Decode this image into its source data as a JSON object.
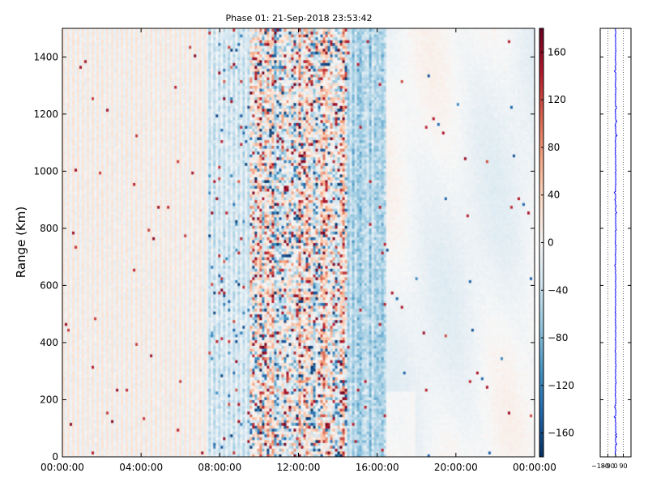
{
  "chart_data": {
    "type": "heatmap",
    "title": "Phase 01: 21-Sep-2018 23:53:42",
    "xlabel": "",
    "ylabel": "Range (Km)",
    "x_ticks": [
      "00:00:00",
      "04:00:00",
      "08:00:00",
      "12:00:00",
      "16:00:00",
      "20:00:00",
      "00:00:00"
    ],
    "y_ticks": [
      0,
      200,
      400,
      600,
      800,
      1000,
      1200,
      1400
    ],
    "ylim": [
      0,
      1500
    ],
    "xlim_hours": [
      0,
      24
    ],
    "colorbar": {
      "cmap": "RdBu_r",
      "range": [
        -180,
        180
      ],
      "ticks": [
        160,
        120,
        80,
        40,
        0,
        -40,
        -80,
        -120,
        -160
      ],
      "colors": [
        "#053061",
        "#2166ac",
        "#4393c3",
        "#92c5de",
        "#d1e5f0",
        "#f7f7f7",
        "#fddbc7",
        "#f4a582",
        "#d6604d",
        "#b2182b",
        "#67001f"
      ]
    },
    "regions": [
      {
        "hours": [
          0.0,
          7.4
        ],
        "description": "alternating light salmon and light blue vertical stripes, near 0 to +30 deg"
      },
      {
        "hours": [
          7.4,
          9.5
        ],
        "description": "light blue stripes with scattered dark outliers"
      },
      {
        "hours": [
          9.5,
          14.5
        ],
        "description": "high-variance noisy region, values spanning -180 to +180"
      },
      {
        "hours": [
          14.5,
          16.4
        ],
        "description": "moderate blue streaks"
      },
      {
        "hours": [
          16.4,
          24.0
        ],
        "description": "smooth, near-zero phase, faint salmon and light blue patches"
      }
    ],
    "profile": {
      "xlim": [
        -180,
        180
      ],
      "x_ticks": [
        -180,
        -90,
        0,
        90
      ],
      "center": 0,
      "color": "#0000ff",
      "description": "phase profile vs range, fluctuating near 0"
    }
  }
}
